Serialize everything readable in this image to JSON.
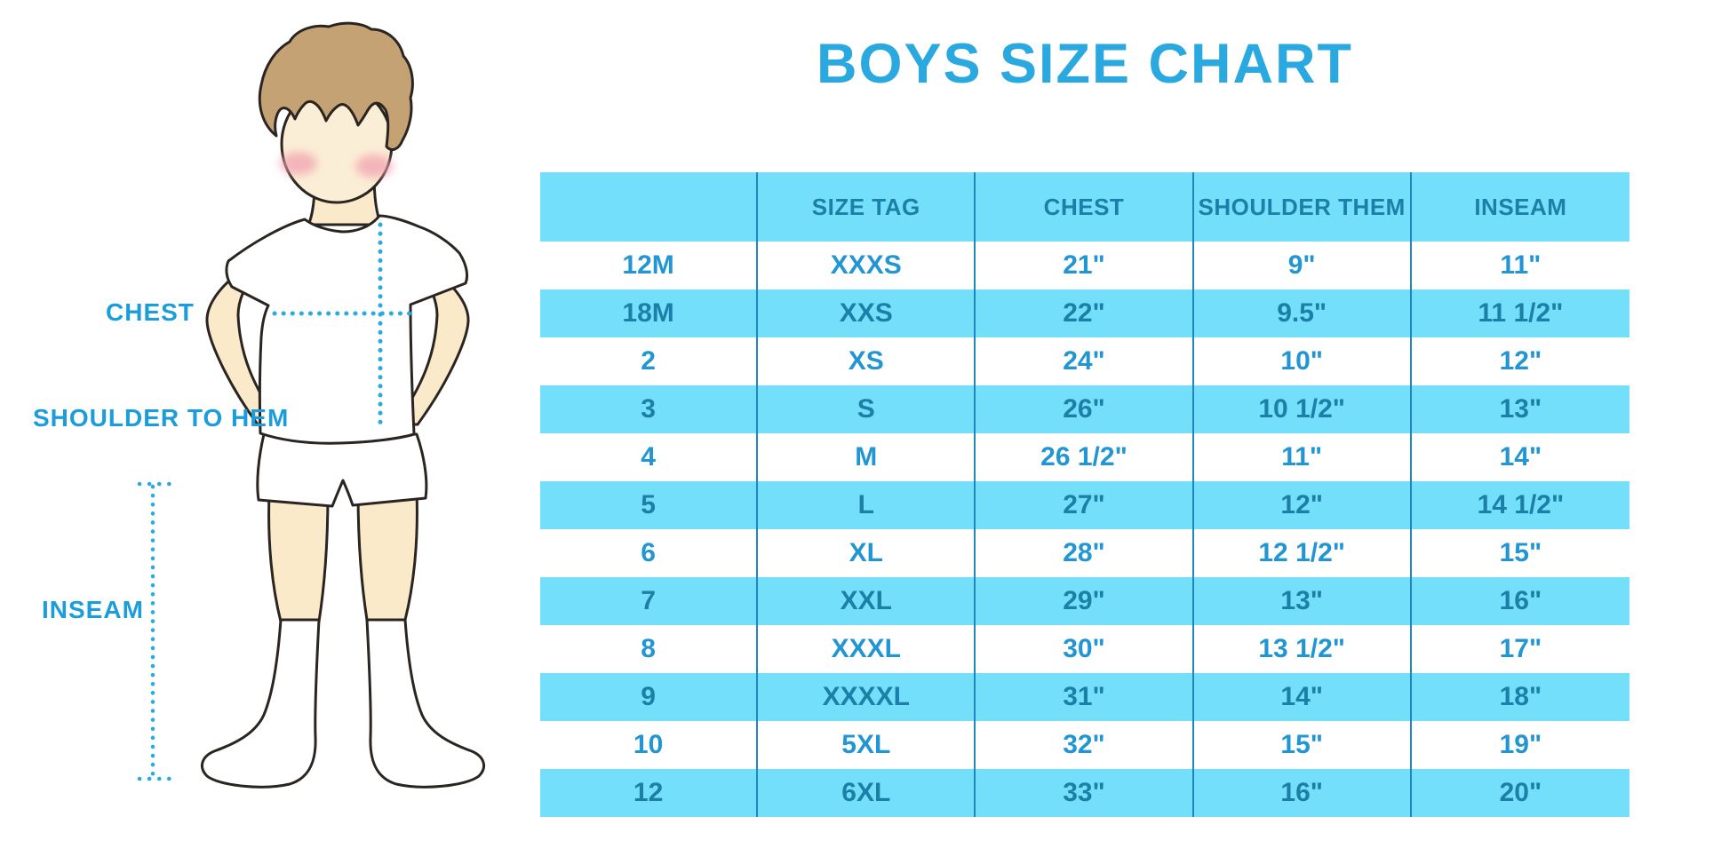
{
  "title": "BOYS SIZE CHART",
  "figure": {
    "labels": {
      "chest": "CHEST",
      "shoulder_to_hem": "SHOULDER TO HEM",
      "inseam": "INSEAM"
    },
    "illustration": "faceless cartoon boy in white t-shirt, white shorts and white knee socks with dotted measurement guides"
  },
  "chart_data": {
    "type": "table",
    "title": "BOYS SIZE CHART",
    "columns": [
      "",
      "SIZE TAG",
      "CHEST",
      "SHOULDER THEM",
      "INSEAM"
    ],
    "rows": [
      [
        "12M",
        "XXXS",
        "21\"",
        "9\"",
        "11\""
      ],
      [
        "18M",
        "XXS",
        "22\"",
        "9.5\"",
        "11 1/2\""
      ],
      [
        "2",
        "XS",
        "24\"",
        "10\"",
        "12\""
      ],
      [
        "3",
        "S",
        "26\"",
        "10 1/2\"",
        "13\""
      ],
      [
        "4",
        "M",
        "26 1/2\"",
        "11\"",
        "14\""
      ],
      [
        "5",
        "L",
        "27\"",
        "12\"",
        "14 1/2\""
      ],
      [
        "6",
        "XL",
        "28\"",
        "12 1/2\"",
        "15\""
      ],
      [
        "7",
        "XXL",
        "29\"",
        "13\"",
        "16\""
      ],
      [
        "8",
        "XXXL",
        "30\"",
        "13 1/2\"",
        "17\""
      ],
      [
        "9",
        "XXXXL",
        "31\"",
        "14\"",
        "18\""
      ],
      [
        "10",
        "5XL",
        "32\"",
        "15\"",
        "19\""
      ],
      [
        "12",
        "6XL",
        "33\"",
        "16\"",
        "20\""
      ]
    ],
    "layout_hints": {
      "banding": "alternating white / light-blue rows starting white",
      "column_dividers": true,
      "outer_border": false
    }
  },
  "colors": {
    "title_blue": "#29A9DF",
    "row_band_blue": "#74DFFA",
    "divider_blue": "#1E88BE",
    "table_text_on_white": "#2196D3",
    "table_text_on_blue": "#1C7FA8",
    "figure_label_blue": "#1B9DDB",
    "dotted_guide_blue": "#29ABE2",
    "hair_brown": "#C5A273",
    "skin": "#FAEACA",
    "blush_pink": "#F2A2B0",
    "outline": "#2A2520"
  }
}
